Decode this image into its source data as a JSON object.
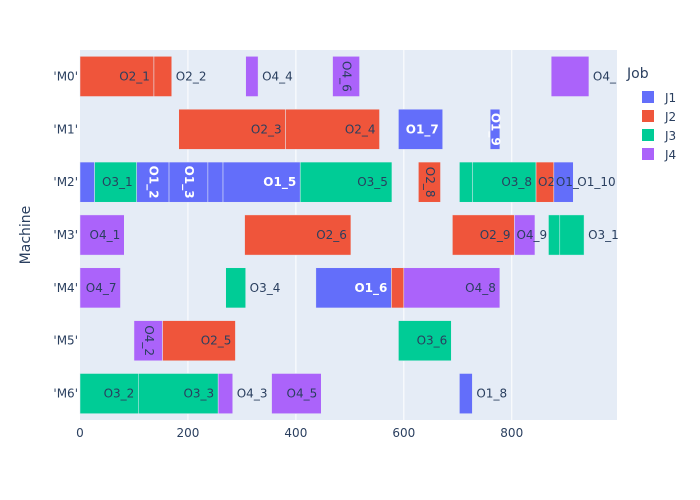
{
  "chart_data": {
    "type": "gantt",
    "xlim": [
      0,
      995
    ],
    "xticks": [
      "0",
      "200",
      "400",
      "600",
      "800"
    ],
    "xtick_values": [
      0,
      200,
      400,
      600,
      800
    ],
    "ylabel": "Machine",
    "categories": [
      "'M0'",
      "'M1'",
      "'M2'",
      "'M3'",
      "'M4'",
      "'M5'",
      "'M6'"
    ],
    "legend_title": "Job",
    "series": [
      {
        "name": "J1",
        "color": "#636efa"
      },
      {
        "name": "J2",
        "color": "#EF553B"
      },
      {
        "name": "J3",
        "color": "#00cc96"
      },
      {
        "name": "J4",
        "color": "#ab63fa"
      }
    ],
    "tasks": [
      {
        "machine": 0,
        "job": 1,
        "start": 0,
        "end": 137,
        "label": "O2_1",
        "pos": "inside"
      },
      {
        "machine": 0,
        "job": 1,
        "start": 137,
        "end": 170,
        "label": "O2_2",
        "pos": "outside"
      },
      {
        "machine": 0,
        "job": 3,
        "start": 307,
        "end": 330,
        "label": "O4_4",
        "pos": "outside"
      },
      {
        "machine": 0,
        "job": 3,
        "start": 468,
        "end": 518,
        "label": "O4_6",
        "pos": "inside-rot"
      },
      {
        "machine": 0,
        "job": 3,
        "start": 873,
        "end": 943,
        "label": "O4_",
        "pos": "outside"
      },
      {
        "machine": 1,
        "job": 1,
        "start": 183,
        "end": 381,
        "label": "O2_3",
        "pos": "inside"
      },
      {
        "machine": 1,
        "job": 1,
        "start": 381,
        "end": 555,
        "label": "O2_4",
        "pos": "inside"
      },
      {
        "machine": 1,
        "job": 0,
        "start": 590,
        "end": 672,
        "label": "O1_7",
        "pos": "inside-bold"
      },
      {
        "machine": 1,
        "job": 0,
        "start": 760,
        "end": 778,
        "label": "O1_9",
        "pos": "inside-rot"
      },
      {
        "machine": 2,
        "job": 0,
        "start": 0,
        "end": 27,
        "label": "",
        "pos": "none"
      },
      {
        "machine": 2,
        "job": 2,
        "start": 27,
        "end": 105,
        "label": "O3_1",
        "pos": "inside"
      },
      {
        "machine": 2,
        "job": 0,
        "start": 105,
        "end": 165,
        "label": "O1_2",
        "pos": "inside-rot"
      },
      {
        "machine": 2,
        "job": 0,
        "start": 165,
        "end": 237,
        "label": "O1_3",
        "pos": "inside-rot"
      },
      {
        "machine": 2,
        "job": 0,
        "start": 237,
        "end": 265,
        "label": "",
        "pos": "none"
      },
      {
        "machine": 2,
        "job": 0,
        "start": 265,
        "end": 408,
        "label": "O1_5",
        "pos": "inside-bold"
      },
      {
        "machine": 2,
        "job": 2,
        "start": 408,
        "end": 578,
        "label": "O3_5",
        "pos": "inside"
      },
      {
        "machine": 2,
        "job": 1,
        "start": 627,
        "end": 668,
        "label": "O2_8",
        "pos": "inside-rot"
      },
      {
        "machine": 2,
        "job": 2,
        "start": 703,
        "end": 727,
        "label": "",
        "pos": "none"
      },
      {
        "machine": 2,
        "job": 2,
        "start": 727,
        "end": 845,
        "label": "O3_8",
        "pos": "inside"
      },
      {
        "machine": 2,
        "job": 1,
        "start": 845,
        "end": 878,
        "label": "O2_",
        "pos": "overflow"
      },
      {
        "machine": 2,
        "job": 0,
        "start": 878,
        "end": 914,
        "label": "O1_",
        "pos": "overflow"
      },
      {
        "machine": 2,
        "job": 2,
        "start": 914,
        "end": 914,
        "label": "O1_10",
        "pos": "outside"
      },
      {
        "machine": 3,
        "job": 3,
        "start": 0,
        "end": 82,
        "label": "O4_1",
        "pos": "inside"
      },
      {
        "machine": 3,
        "job": 1,
        "start": 305,
        "end": 502,
        "label": "O2_6",
        "pos": "inside"
      },
      {
        "machine": 3,
        "job": 1,
        "start": 690,
        "end": 805,
        "label": "O2_9",
        "pos": "inside"
      },
      {
        "machine": 3,
        "job": 3,
        "start": 805,
        "end": 843,
        "label": "O4_9",
        "pos": "overflow"
      },
      {
        "machine": 3,
        "job": 2,
        "start": 868,
        "end": 889,
        "label": "",
        "pos": "none"
      },
      {
        "machine": 3,
        "job": 2,
        "start": 889,
        "end": 934,
        "label": "O3_1",
        "pos": "outside"
      },
      {
        "machine": 4,
        "job": 3,
        "start": 0,
        "end": 75,
        "label": "O4_7",
        "pos": "inside"
      },
      {
        "machine": 4,
        "job": 2,
        "start": 270,
        "end": 307,
        "label": "O3_4",
        "pos": "outside"
      },
      {
        "machine": 4,
        "job": 0,
        "start": 437,
        "end": 577,
        "label": "O1_6",
        "pos": "inside-bold"
      },
      {
        "machine": 4,
        "job": 1,
        "start": 577,
        "end": 600,
        "label": "",
        "pos": "none"
      },
      {
        "machine": 4,
        "job": 3,
        "start": 600,
        "end": 778,
        "label": "O4_8",
        "pos": "inside"
      },
      {
        "machine": 5,
        "job": 3,
        "start": 100,
        "end": 153,
        "label": "O4_2",
        "pos": "inside-rot"
      },
      {
        "machine": 5,
        "job": 1,
        "start": 153,
        "end": 288,
        "label": "O2_5",
        "pos": "inside"
      },
      {
        "machine": 5,
        "job": 2,
        "start": 590,
        "end": 688,
        "label": "O3_6",
        "pos": "inside"
      },
      {
        "machine": 6,
        "job": 2,
        "start": 0,
        "end": 108,
        "label": "O3_2",
        "pos": "inside"
      },
      {
        "machine": 6,
        "job": 2,
        "start": 108,
        "end": 256,
        "label": "O3_3",
        "pos": "inside"
      },
      {
        "machine": 6,
        "job": 3,
        "start": 256,
        "end": 283,
        "label": "O4_3",
        "pos": "outside"
      },
      {
        "machine": 6,
        "job": 3,
        "start": 355,
        "end": 447,
        "label": "O4_5",
        "pos": "inside"
      },
      {
        "machine": 6,
        "job": 0,
        "start": 703,
        "end": 727,
        "label": "O1_8",
        "pos": "outside"
      }
    ]
  }
}
